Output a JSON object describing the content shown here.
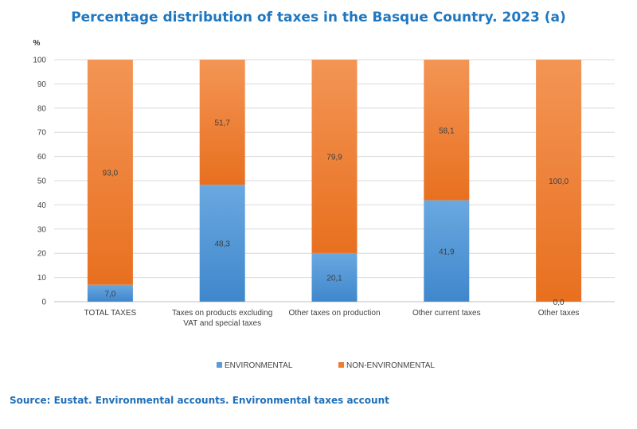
{
  "header": {
    "title": "Percentage distribution of taxes in the Basque Country. 2023 (a)"
  },
  "footer": {
    "source": "Source: Eustat. Environmental accounts. Environmental taxes account"
  },
  "colors": {
    "environmental": "#5b9bd5",
    "non_environmental": "#ed7d31",
    "title": "#1f77c0",
    "grid": "#d9d9d9"
  },
  "chart_data": {
    "type": "bar",
    "stacked": true,
    "ylabel": "%",
    "ylim": [
      0,
      100
    ],
    "yticks": [
      0,
      10,
      20,
      30,
      40,
      50,
      60,
      70,
      80,
      90,
      100
    ],
    "grid": true,
    "legend_position": "bottom",
    "categories": [
      [
        "TOTAL TAXES"
      ],
      [
        "Taxes on products excluding",
        "VAT and special taxes"
      ],
      [
        "Other taxes on production"
      ],
      [
        "Other current taxes"
      ],
      [
        "Other taxes"
      ]
    ],
    "series": [
      {
        "name": "ENVIRONMENTAL",
        "values": [
          7.0,
          48.3,
          20.1,
          41.9,
          0.0
        ],
        "labels": [
          "7,0",
          "48,3",
          "20,1",
          "41,9",
          "0,0"
        ]
      },
      {
        "name": "NON-ENVIRONMENTAL",
        "values": [
          93.0,
          51.7,
          79.9,
          58.1,
          100.0
        ],
        "labels": [
          "93,0",
          "51,7",
          "79,9",
          "58,1",
          "100,0"
        ]
      }
    ]
  }
}
